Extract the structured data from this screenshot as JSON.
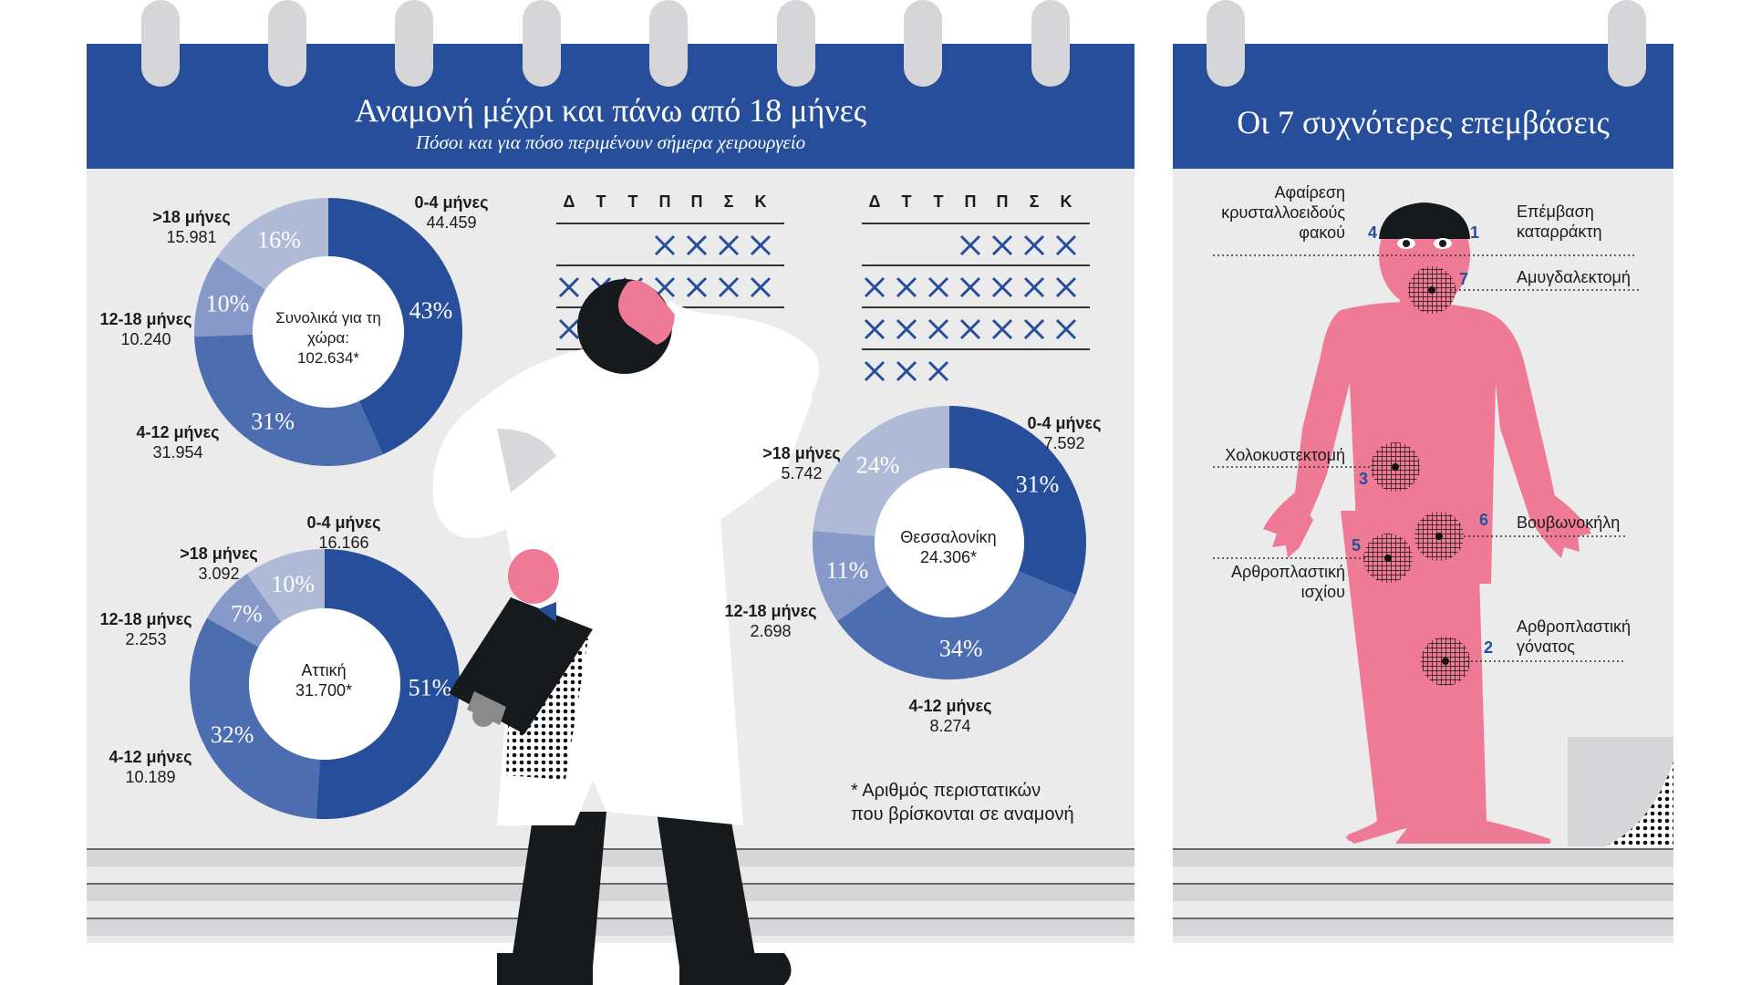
{
  "left_panel": {
    "title": "Αναμονή μέχρι και πάνω από 18 μήνες",
    "subtitle": "Πόσοι και για πόσο περιμένουν σήμερα χειρουργείο"
  },
  "right_panel": {
    "title": "Οι 7 συχνότερες επεμβάσεις"
  },
  "calendar": {
    "weekdays": [
      "Δ",
      "Τ",
      "Τ",
      "Π",
      "Π",
      "Σ",
      "Κ"
    ]
  },
  "colors": {
    "dark": "#264e9b",
    "mid": "#4c6db0",
    "light": "#8799c8",
    "pale": "#aebad6",
    "body": "#ef7a95"
  },
  "chart_data": [
    {
      "type": "pie",
      "center": "Συνολικά για τη χώρα:",
      "total": "102.634*",
      "categories": [
        "0-4 μήνες",
        "4-12 μήνες",
        "12-18 μήνες",
        ">18 μήνες"
      ],
      "values": [
        44459,
        31954,
        10240,
        15981
      ],
      "value_labels": [
        "44.459",
        "31.954",
        "10.240",
        "15.981"
      ],
      "percent_labels": [
        "43%",
        "31%",
        "10%",
        "16%"
      ]
    },
    {
      "type": "pie",
      "center": "Αττική",
      "total": "31.700*",
      "categories": [
        "0-4 μήνες",
        "4-12 μήνες",
        "12-18 μήνες",
        ">18 μήνες"
      ],
      "values": [
        16166,
        10189,
        2253,
        3092
      ],
      "value_labels": [
        "16.166",
        "10.189",
        "2.253",
        "3.092"
      ],
      "percent_labels": [
        "51%",
        "32%",
        "7%",
        "10%"
      ]
    },
    {
      "type": "pie",
      "center": "Θεσσαλονίκη",
      "total": "24.306*",
      "categories": [
        "0-4 μήνες",
        "4-12 μήνες",
        "12-18 μήνες",
        ">18 μήνες"
      ],
      "values": [
        7592,
        8274,
        2698,
        5742
      ],
      "value_labels": [
        "7.592",
        "8.274",
        "2.698",
        "5.742"
      ],
      "percent_labels": [
        "31%",
        "34%",
        "11%",
        "24%"
      ]
    }
  ],
  "footnote": {
    "line1": "* Αριθμός περιστατικών",
    "line2": "που βρίσκονται σε αναμονή"
  },
  "operations": [
    {
      "number": "1",
      "name_line1": "Επέμβαση",
      "name_line2": "καταρράκτη"
    },
    {
      "number": "2",
      "name_line1": "Αρθροπλαστική",
      "name_line2": "γόνατος"
    },
    {
      "number": "3",
      "name_line1": "Χολοκυστεκτομή",
      "name_line2": ""
    },
    {
      "number": "4",
      "name_line1": "Αφαίρεση",
      "name_line2": "κρυσταλλοειδούς",
      "name_line3": "φακού"
    },
    {
      "number": "5",
      "name_line1": "Αρθροπλαστική",
      "name_line2": "ισχίου"
    },
    {
      "number": "6",
      "name_line1": "Βουβωνοκήλη",
      "name_line2": ""
    },
    {
      "number": "7",
      "name_line1": "Αμυγδαλεκτομή",
      "name_line2": ""
    }
  ]
}
